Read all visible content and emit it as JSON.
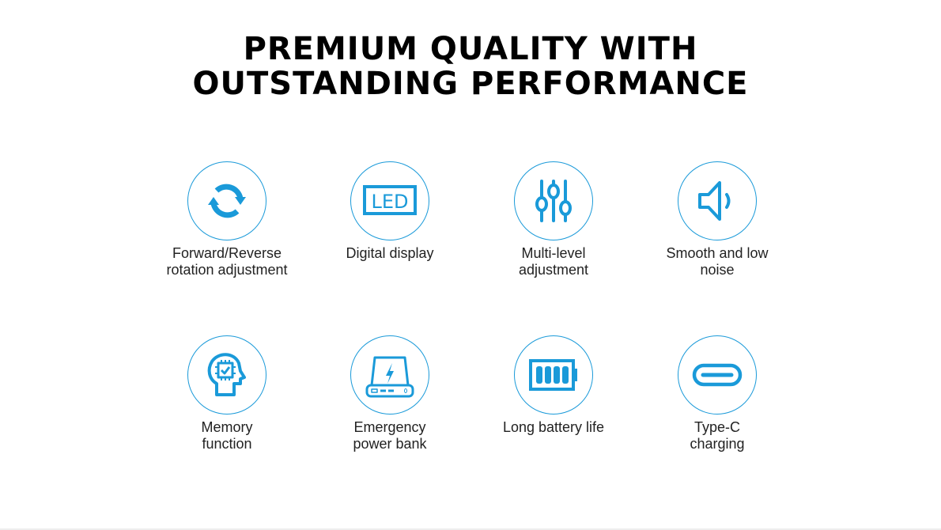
{
  "title": {
    "line1": "PREMIUM QUALITY WITH",
    "line2": "OUTSTANDING PERFORMANCE"
  },
  "accent_color": "#1a9ad9",
  "features": [
    {
      "label": "Forward/Reverse rotation adjustment",
      "icon": "rotate-arrows-icon"
    },
    {
      "label": "Digital display",
      "icon": "led-display-icon",
      "icon_text": "LED"
    },
    {
      "label": "Multi-level adjustment",
      "icon": "sliders-icon"
    },
    {
      "label": "Smooth and low noise",
      "icon": "speaker-icon"
    },
    {
      "label": "Memory function",
      "icon": "head-chip-icon"
    },
    {
      "label": "Emergency power bank",
      "icon": "power-bank-icon"
    },
    {
      "label": "Long battery life",
      "icon": "battery-icon"
    },
    {
      "label": "Type-C charging",
      "icon": "usb-c-icon"
    }
  ]
}
